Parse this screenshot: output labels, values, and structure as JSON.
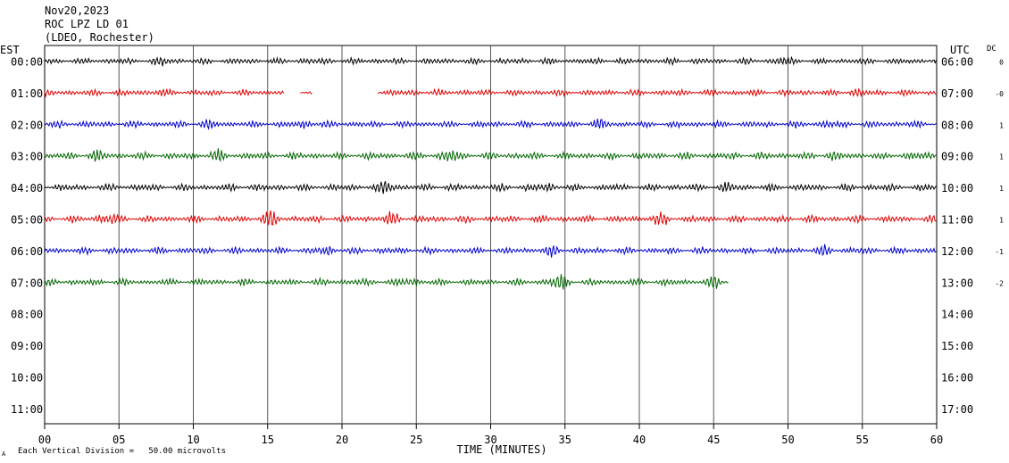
{
  "header": {
    "date": "Nov20,2023",
    "station": "ROC LPZ LD 01",
    "network": "(LDEO, Rochester)"
  },
  "labels": {
    "left_timezone": "EST",
    "right_timezone": "UTC",
    "dc_label": "DC",
    "x_axis_title": "TIME (MINUTES)",
    "footer_mark": "A",
    "footer_scale": "Each Vertical Division =   50.00 microvolts"
  },
  "chart_data": {
    "type": "line",
    "title": "",
    "xlabel": "TIME (MINUTES)",
    "ylabel": "",
    "xlim": [
      0,
      60
    ],
    "x_ticks": [
      "00",
      "05",
      "10",
      "15",
      "20",
      "25",
      "30",
      "35",
      "40",
      "45",
      "50",
      "55",
      "60"
    ],
    "rows": [
      {
        "left": "00:00",
        "right": "06:00",
        "dc": "0",
        "color": "#000000",
        "segments": [
          [
            0,
            60
          ]
        ],
        "amplitude": 3.5,
        "bursts": [
          [
            8,
            1.4
          ],
          [
            49.8,
            1.5
          ]
        ]
      },
      {
        "left": "01:00",
        "right": "07:00",
        "dc": "-0",
        "color": "#dd0000",
        "segments": [
          [
            0,
            16.1
          ],
          [
            17.2,
            18.0
          ],
          [
            22.4,
            60
          ]
        ],
        "amplitude": 3.5,
        "bursts": [
          [
            7.5,
            1.5
          ],
          [
            54.4,
            1.4
          ]
        ]
      },
      {
        "left": "02:00",
        "right": "08:00",
        "dc": "1",
        "color": "#0000cc",
        "segments": [
          [
            0,
            60
          ]
        ],
        "amplitude": 3.8,
        "bursts": [
          [
            11,
            1.3
          ],
          [
            17.8,
            1.5
          ],
          [
            37.4,
            1.4
          ],
          [
            52.6,
            1.3
          ]
        ]
      },
      {
        "left": "03:00",
        "right": "09:00",
        "dc": "1",
        "color": "#006600",
        "segments": [
          [
            0,
            60
          ]
        ],
        "amplitude": 4.0,
        "bursts": [
          [
            3.5,
            1.5
          ],
          [
            11.5,
            1.5
          ],
          [
            27.3,
            1.8
          ],
          [
            52.9,
            1.3
          ],
          [
            58.4,
            1.3
          ]
        ]
      },
      {
        "left": "04:00",
        "right": "10:00",
        "dc": "1",
        "color": "#000000",
        "segments": [
          [
            0,
            60
          ]
        ],
        "amplitude": 4.0,
        "bursts": [
          [
            23.2,
            1.8
          ],
          [
            33.8,
            1.4
          ],
          [
            46,
            1.3
          ]
        ]
      },
      {
        "left": "05:00",
        "right": "11:00",
        "dc": "1",
        "color": "#dd0000",
        "segments": [
          [
            0,
            60
          ]
        ],
        "amplitude": 4.0,
        "bursts": [
          [
            4.2,
            1.8
          ],
          [
            15.2,
            1.8
          ],
          [
            23.6,
            1.7
          ],
          [
            41.4,
            1.7
          ]
        ]
      },
      {
        "left": "06:00",
        "right": "12:00",
        "dc": "-1",
        "color": "#0000cc",
        "segments": [
          [
            0,
            60
          ]
        ],
        "amplitude": 3.8,
        "bursts": [
          [
            19,
            1.5
          ],
          [
            34,
            1.4
          ],
          [
            52.5,
            1.4
          ]
        ]
      },
      {
        "left": "07:00",
        "right": "13:00",
        "dc": "-2",
        "color": "#006600",
        "segments": [
          [
            0,
            46
          ]
        ],
        "amplitude": 3.8,
        "bursts": [
          [
            24.5,
            1.5
          ],
          [
            34.7,
            2.0
          ],
          [
            45.2,
            1.5
          ]
        ]
      },
      {
        "left": "08:00",
        "right": "14:00",
        "dc": "",
        "color": "#000000",
        "segments": []
      },
      {
        "left": "09:00",
        "right": "15:00",
        "dc": "",
        "color": "#dd0000",
        "segments": []
      },
      {
        "left": "10:00",
        "right": "16:00",
        "dc": "",
        "color": "#0000cc",
        "segments": []
      },
      {
        "left": "11:00",
        "right": "17:00",
        "dc": "",
        "color": "#006600",
        "segments": []
      }
    ]
  }
}
